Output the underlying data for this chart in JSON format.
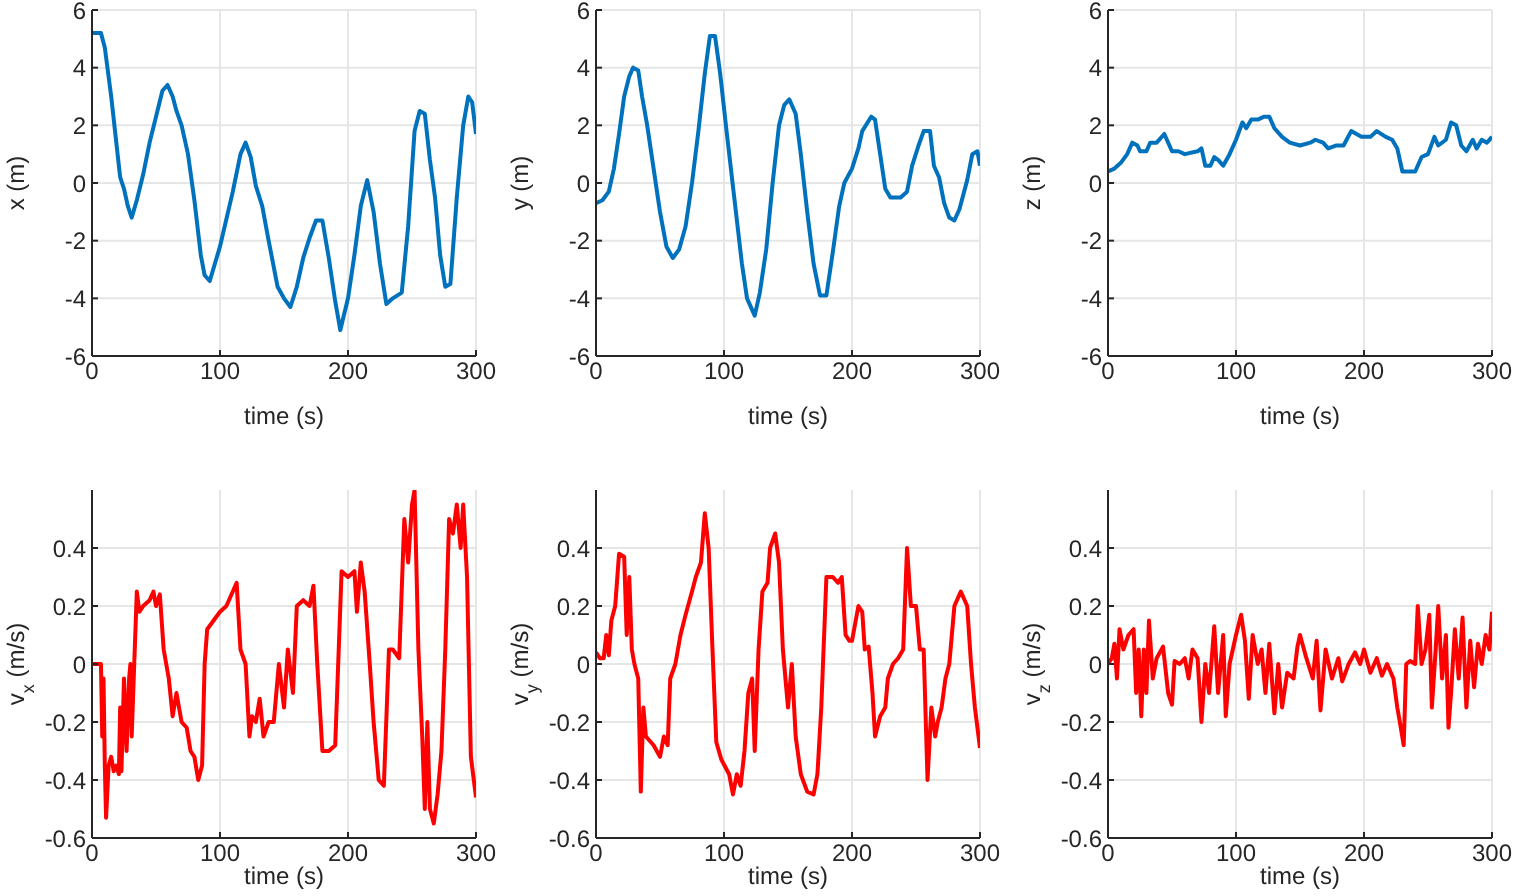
{
  "chart_data": [
    {
      "type": "line",
      "xlabel": "time (s)",
      "ylabel": "x (m)",
      "xlim": [
        0,
        300
      ],
      "ylim": [
        -6,
        6
      ],
      "xticks": [
        0,
        100,
        200,
        300
      ],
      "yticks": [
        -6,
        -4,
        -2,
        0,
        2,
        4,
        6
      ],
      "grid": true,
      "series": [
        {
          "color": "#0072bd",
          "x": [
            0,
            7,
            10,
            15,
            20,
            22,
            25,
            28,
            31,
            35,
            40,
            45,
            50,
            55,
            59,
            63,
            66,
            70,
            75,
            80,
            85,
            88,
            92,
            100,
            110,
            116,
            120,
            124,
            128,
            133,
            138,
            145,
            150,
            155,
            160,
            165,
            170,
            175,
            180,
            185,
            190,
            194,
            200,
            205,
            210,
            215,
            220,
            225,
            230,
            235,
            242,
            247,
            252,
            256,
            260,
            264,
            268,
            272,
            276,
            280,
            285,
            290,
            294,
            297,
            300
          ],
          "values": [
            5.2,
            5.2,
            4.7,
            3,
            1,
            0.2,
            -0.2,
            -0.8,
            -1.2,
            -0.6,
            0.3,
            1.4,
            2.3,
            3.2,
            3.4,
            3,
            2.5,
            2,
            1,
            -0.6,
            -2.5,
            -3.2,
            -3.4,
            -2.2,
            -0.3,
            1,
            1.4,
            0.9,
            -0.1,
            -0.8,
            -2,
            -3.6,
            -4,
            -4.3,
            -3.6,
            -2.6,
            -1.9,
            -1.3,
            -1.3,
            -2.6,
            -4.1,
            -5.1,
            -4,
            -2.5,
            -0.8,
            0.1,
            -1,
            -2.8,
            -4.2,
            -4,
            -3.8,
            -1.5,
            1.8,
            2.5,
            2.4,
            0.8,
            -0.5,
            -2.5,
            -3.6,
            -3.5,
            -0.5,
            2,
            3,
            2.8,
            1.7
          ]
        }
      ]
    },
    {
      "type": "line",
      "xlabel": "time (s)",
      "ylabel": "y (m)",
      "xlim": [
        0,
        300
      ],
      "ylim": [
        -6,
        6
      ],
      "xticks": [
        0,
        100,
        200,
        300
      ],
      "yticks": [
        -6,
        -4,
        -2,
        0,
        2,
        4,
        6
      ],
      "grid": true,
      "series": [
        {
          "color": "#0072bd",
          "x": [
            0,
            5,
            10,
            14,
            18,
            22,
            26,
            29,
            33,
            36,
            40,
            45,
            50,
            55,
            60,
            65,
            70,
            75,
            80,
            85,
            89,
            93,
            97,
            102,
            108,
            114,
            118,
            124,
            128,
            133,
            138,
            143,
            147,
            151,
            156,
            160,
            165,
            170,
            175,
            180,
            185,
            190,
            194,
            200,
            205,
            208,
            215,
            218,
            222,
            226,
            230,
            238,
            243,
            247,
            252,
            256,
            261,
            264,
            268,
            272,
            276,
            280,
            284,
            290,
            294,
            298,
            300
          ],
          "values": [
            -0.7,
            -0.6,
            -0.3,
            0.5,
            1.7,
            3,
            3.7,
            4,
            3.9,
            3,
            2,
            0.5,
            -1,
            -2.2,
            -2.6,
            -2.3,
            -1.5,
            0,
            1.8,
            3.8,
            5.1,
            5.1,
            3.8,
            1.8,
            -0.5,
            -2.8,
            -4,
            -4.6,
            -3.8,
            -2.3,
            0,
            2,
            2.7,
            2.9,
            2.4,
            1,
            -1,
            -2.8,
            -3.9,
            -3.9,
            -2.4,
            -0.8,
            0,
            0.5,
            1.2,
            1.8,
            2.3,
            2.2,
            1,
            -0.2,
            -0.5,
            -0.5,
            -0.3,
            0.6,
            1.3,
            1.8,
            1.8,
            0.6,
            0.2,
            -0.7,
            -1.2,
            -1.3,
            -0.9,
            0.1,
            1,
            1.1,
            0.6
          ]
        }
      ]
    },
    {
      "type": "line",
      "xlabel": "time (s)",
      "ylabel": "z (m)",
      "xlim": [
        0,
        300
      ],
      "ylim": [
        -6,
        6
      ],
      "xticks": [
        0,
        100,
        200,
        300
      ],
      "yticks": [
        -6,
        -4,
        -2,
        0,
        2,
        4,
        6
      ],
      "grid": true,
      "series": [
        {
          "color": "#0072bd",
          "x": [
            0,
            5,
            10,
            15,
            19,
            23,
            25,
            30,
            33,
            38,
            44,
            50,
            55,
            60,
            70,
            73,
            76,
            80,
            83,
            86,
            90,
            95,
            100,
            105,
            108,
            112,
            117,
            122,
            126,
            130,
            136,
            142,
            150,
            158,
            162,
            168,
            172,
            178,
            184,
            190,
            198,
            205,
            210,
            217,
            222,
            226,
            230,
            240,
            245,
            250,
            255,
            258,
            264,
            268,
            272,
            276,
            280,
            285,
            288,
            292,
            296,
            300
          ],
          "values": [
            0.4,
            0.5,
            0.7,
            1,
            1.4,
            1.3,
            1.1,
            1.1,
            1.4,
            1.4,
            1.7,
            1.1,
            1.1,
            1,
            1.1,
            1.2,
            0.6,
            0.6,
            0.9,
            0.8,
            0.6,
            1,
            1.5,
            2.1,
            1.9,
            2.2,
            2.2,
            2.3,
            2.3,
            1.9,
            1.6,
            1.4,
            1.3,
            1.4,
            1.5,
            1.4,
            1.2,
            1.3,
            1.3,
            1.8,
            1.6,
            1.6,
            1.8,
            1.6,
            1.5,
            1.2,
            0.4,
            0.4,
            0.9,
            1,
            1.6,
            1.3,
            1.5,
            2.1,
            2,
            1.3,
            1.1,
            1.5,
            1.2,
            1.5,
            1.4,
            1.6
          ]
        }
      ]
    },
    {
      "type": "line",
      "xlabel": "time (s)",
      "ylabel": "v$_{x}$ (m/s)",
      "xlim": [
        0,
        300
      ],
      "ylim": [
        -0.6,
        0.6
      ],
      "xticks": [
        0,
        100,
        200,
        300
      ],
      "yticks": [
        -0.6,
        -0.4,
        -0.2,
        0,
        0.2,
        0.4
      ],
      "grid": true,
      "series": [
        {
          "color": "#ff0000",
          "x": [
            0,
            5,
            7,
            8,
            9,
            10,
            11,
            13,
            15,
            17,
            19,
            21,
            22,
            23,
            25,
            27,
            29,
            30,
            31,
            33,
            35,
            37,
            40,
            45,
            48,
            50,
            53,
            56,
            60,
            63,
            66,
            70,
            74,
            77,
            80,
            83,
            86,
            88,
            90,
            95,
            100,
            105,
            110,
            113,
            116,
            120,
            123,
            125,
            128,
            131,
            134,
            138,
            142,
            146,
            150,
            153,
            157,
            160,
            165,
            170,
            173,
            176,
            180,
            185,
            190,
            195,
            200,
            205,
            207,
            210,
            213,
            217,
            220,
            224,
            228,
            232,
            235,
            240,
            244,
            247,
            250,
            252,
            255,
            258,
            260,
            262,
            264,
            267,
            270,
            273,
            276,
            279,
            282,
            285,
            288,
            290,
            293,
            296,
            300
          ],
          "values": [
            0,
            0,
            0,
            -0.25,
            -0.05,
            -0.35,
            -0.53,
            -0.35,
            -0.32,
            -0.37,
            -0.35,
            -0.38,
            -0.15,
            -0.37,
            -0.05,
            -0.3,
            -0.05,
            0,
            -0.25,
            0,
            0.25,
            0.18,
            0.2,
            0.22,
            0.25,
            0.2,
            0.24,
            0.05,
            -0.05,
            -0.18,
            -0.1,
            -0.2,
            -0.22,
            -0.3,
            -0.32,
            -0.4,
            -0.35,
            0,
            0.12,
            0.15,
            0.18,
            0.2,
            0.25,
            0.28,
            0.05,
            0,
            -0.25,
            -0.18,
            -0.2,
            -0.12,
            -0.25,
            -0.2,
            -0.2,
            0,
            -0.15,
            0.05,
            -0.1,
            0.2,
            0.22,
            0.2,
            0.27,
            0,
            -0.3,
            -0.3,
            -0.28,
            0.32,
            0.3,
            0.32,
            0.18,
            0.35,
            0.25,
            0,
            -0.2,
            -0.4,
            -0.42,
            0.05,
            0.05,
            0.02,
            0.5,
            0.35,
            0.55,
            0.6,
            0.05,
            -0.25,
            -0.5,
            -0.2,
            -0.5,
            -0.55,
            -0.45,
            -0.3,
            0.05,
            0.5,
            0.45,
            0.55,
            0.4,
            0.55,
            0.3,
            -0.32,
            -0.46
          ]
        }
      ]
    },
    {
      "type": "line",
      "xlabel": "time (s)",
      "ylabel": "v$_{y}$ (m/s)",
      "xlim": [
        0,
        300
      ],
      "ylim": [
        -0.6,
        0.6
      ],
      "xticks": [
        0,
        100,
        200,
        300
      ],
      "yticks": [
        -0.6,
        -0.4,
        -0.2,
        0,
        0.2,
        0.4
      ],
      "grid": true,
      "series": [
        {
          "color": "#ff0000",
          "x": [
            0,
            3,
            6,
            8,
            10,
            12,
            15,
            18,
            22,
            24,
            26,
            28,
            30,
            33,
            35,
            37,
            39,
            45,
            50,
            53,
            56,
            58,
            62,
            66,
            70,
            75,
            78,
            82,
            85,
            88,
            91,
            94,
            98,
            104,
            107,
            110,
            113,
            116,
            119,
            122,
            124,
            127,
            130,
            134,
            136,
            140,
            143,
            146,
            150,
            153,
            156,
            160,
            165,
            170,
            173,
            176,
            180,
            185,
            189,
            192,
            195,
            198,
            200,
            205,
            208,
            210,
            213,
            216,
            218,
            222,
            226,
            228,
            232,
            236,
            240,
            243,
            246,
            250,
            253,
            256,
            259,
            262,
            265,
            267,
            270,
            273,
            276,
            280,
            285,
            290,
            293,
            296,
            300
          ],
          "values": [
            0.04,
            0.02,
            0.02,
            0.1,
            0.03,
            0.15,
            0.2,
            0.38,
            0.37,
            0.1,
            0.3,
            0.05,
            0,
            -0.05,
            -0.44,
            -0.15,
            -0.25,
            -0.28,
            -0.32,
            -0.25,
            -0.28,
            -0.05,
            0,
            0.1,
            0.17,
            0.25,
            0.3,
            0.35,
            0.52,
            0.4,
            0.05,
            -0.27,
            -0.33,
            -0.38,
            -0.45,
            -0.38,
            -0.42,
            -0.3,
            -0.1,
            -0.05,
            -0.3,
            0.05,
            0.25,
            0.28,
            0.4,
            0.45,
            0.35,
            0.05,
            -0.15,
            0,
            -0.25,
            -0.38,
            -0.44,
            -0.45,
            -0.38,
            -0.15,
            0.3,
            0.3,
            0.28,
            0.3,
            0.1,
            0.08,
            0.08,
            0.2,
            0.18,
            0.05,
            0.06,
            -0.1,
            -0.25,
            -0.18,
            -0.15,
            -0.05,
            0,
            0.02,
            0.05,
            0.4,
            0.2,
            0.2,
            0.05,
            0.05,
            -0.4,
            -0.15,
            -0.25,
            -0.2,
            -0.15,
            -0.05,
            0,
            0.2,
            0.25,
            0.2,
            0,
            -0.15,
            -0.29
          ]
        }
      ]
    },
    {
      "type": "line",
      "xlabel": "time (s)",
      "ylabel": "v$_{z}$ (m/s)",
      "xlim": [
        0,
        300
      ],
      "ylim": [
        -0.6,
        0.6
      ],
      "xticks": [
        0,
        100,
        200,
        300
      ],
      "yticks": [
        -0.6,
        -0.4,
        -0.2,
        0,
        0.2,
        0.4
      ],
      "grid": true,
      "series": [
        {
          "color": "#ff0000",
          "x": [
            0,
            3,
            5,
            7,
            9,
            12,
            16,
            20,
            22,
            24,
            26,
            28,
            30,
            32,
            35,
            38,
            43,
            47,
            50,
            52,
            56,
            60,
            63,
            66,
            70,
            73,
            76,
            79,
            83,
            86,
            90,
            92,
            95,
            100,
            104,
            107,
            110,
            113,
            117,
            120,
            123,
            126,
            130,
            133,
            136,
            140,
            145,
            148,
            150,
            155,
            160,
            163,
            166,
            170,
            175,
            180,
            183,
            188,
            193,
            197,
            200,
            205,
            210,
            214,
            218,
            223,
            226,
            228,
            231,
            233,
            236,
            240,
            242,
            245,
            248,
            251,
            253,
            256,
            258,
            261,
            264,
            266,
            268,
            271,
            274,
            277,
            280,
            283,
            286,
            289,
            292,
            295,
            298,
            300
          ],
          "values": [
            0,
            0.02,
            0.07,
            -0.05,
            0.12,
            0.05,
            0.1,
            0.12,
            -0.1,
            0.05,
            -0.18,
            0.05,
            -0.1,
            0.15,
            -0.05,
            0.02,
            0.06,
            -0.1,
            -0.14,
            0.01,
            0,
            0.02,
            -0.05,
            0.05,
            0.02,
            -0.2,
            0,
            -0.1,
            0.13,
            -0.1,
            0.1,
            -0.18,
            0,
            0.1,
            0.17,
            0.08,
            -0.12,
            0.1,
            0,
            0.05,
            -0.1,
            0.07,
            -0.17,
            0,
            -0.15,
            -0.03,
            -0.05,
            0.06,
            0.1,
            0.02,
            -0.05,
            0.08,
            -0.16,
            0.05,
            -0.05,
            0.02,
            -0.06,
            0,
            0.04,
            0,
            0.05,
            -0.03,
            0.02,
            -0.04,
            0,
            -0.05,
            -0.15,
            -0.2,
            -0.28,
            0,
            0.01,
            0,
            0.2,
            0,
            0.05,
            0.17,
            -0.15,
            0.05,
            0.2,
            -0.05,
            0.1,
            -0.22,
            -0.1,
            0.12,
            -0.05,
            0.16,
            -0.15,
            0.08,
            -0.08,
            0.07,
            0,
            0.1,
            0.05,
            0.18
          ]
        }
      ]
    }
  ]
}
